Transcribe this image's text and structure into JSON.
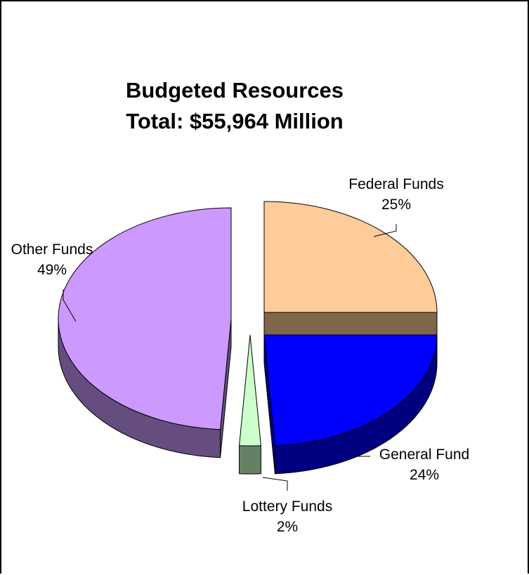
{
  "chart_data": {
    "type": "pie",
    "title": "Budgeted Resources",
    "subtitle": "Total: $55,964 Million",
    "categories": [
      "Federal Funds",
      "General Fund",
      "Lottery Funds",
      "Other Funds"
    ],
    "values": [
      25,
      24,
      2,
      49
    ],
    "value_labels": [
      "25%",
      "24%",
      "2%",
      "49%"
    ],
    "legend": "none",
    "style": "3d-exploded",
    "colors": {
      "Federal Funds": "#FFCC99",
      "General Fund": "#0000FF",
      "Lottery Funds": "#CCFFCC",
      "Other Funds": "#CC99FF"
    }
  }
}
